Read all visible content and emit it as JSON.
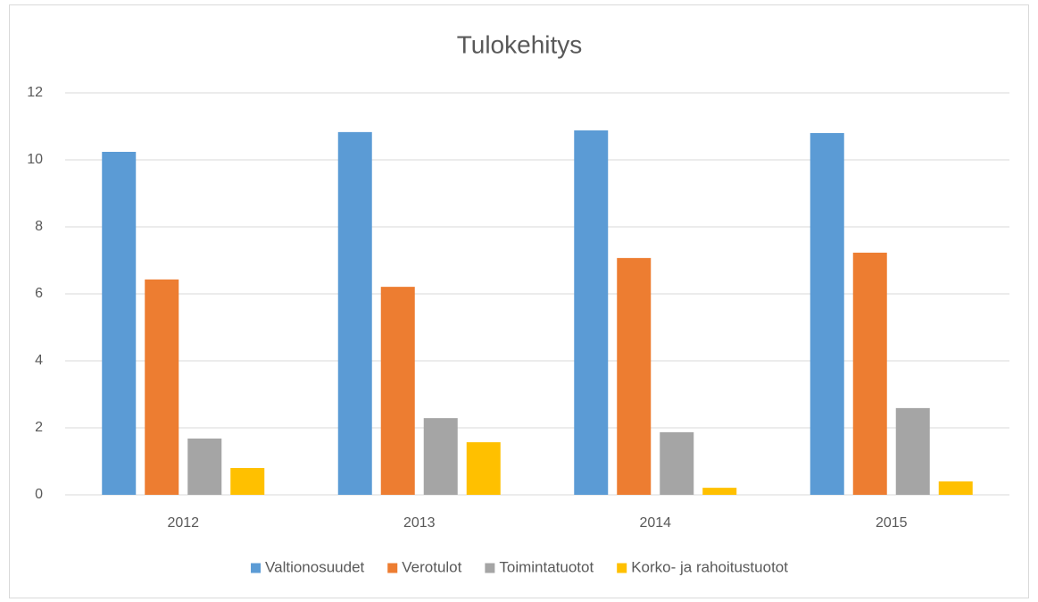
{
  "chart_data": {
    "type": "bar",
    "title": "Tulokehitys",
    "categories": [
      "2012",
      "2013",
      "2014",
      "2015"
    ],
    "series": [
      {
        "name": "Valtionosuudet",
        "color": "#5b9bd5",
        "values": [
          10.24,
          10.83,
          10.88,
          10.8
        ]
      },
      {
        "name": "Verotulot",
        "color": "#ed7d31",
        "values": [
          6.43,
          6.21,
          7.07,
          7.23
        ]
      },
      {
        "name": "Toimintatuotot",
        "color": "#a5a5a5",
        "values": [
          1.68,
          2.29,
          1.87,
          2.59
        ]
      },
      {
        "name": "Korko- ja rahoitustuotot",
        "color": "#ffc000",
        "values": [
          0.8,
          1.57,
          0.21,
          0.4
        ]
      }
    ],
    "ylim": [
      0,
      12
    ],
    "yticks": [
      0,
      2,
      4,
      6,
      8,
      10,
      12
    ],
    "grid": true,
    "legend": "bottom"
  }
}
